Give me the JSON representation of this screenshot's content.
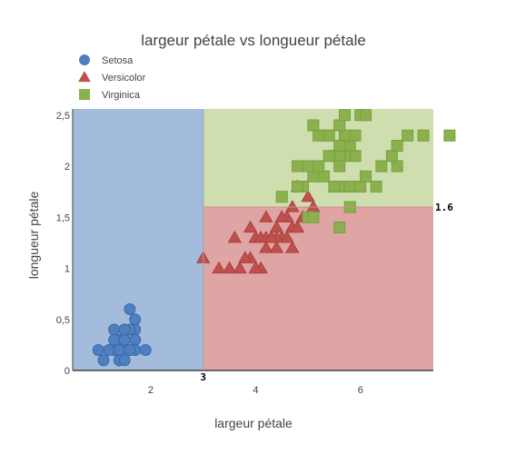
{
  "chart_data": {
    "type": "scatter",
    "title": "largeur pétale vs longueur pétale",
    "xlabel": "largeur pétale",
    "ylabel": "longueur pétale",
    "xlim": [
      0.51,
      7.39
    ],
    "ylim": [
      0,
      2.56
    ],
    "x_ticks": [
      {
        "value": 2,
        "label": "2"
      },
      {
        "value": 4,
        "label": "4"
      },
      {
        "value": 6,
        "label": "6"
      }
    ],
    "y_ticks": [
      {
        "value": 0,
        "label": "0"
      },
      {
        "value": 0.5,
        "label": "0,5"
      },
      {
        "value": 1,
        "label": "1"
      },
      {
        "value": 1.5,
        "label": "1,5"
      },
      {
        "value": 2,
        "label": "2"
      },
      {
        "value": 2.5,
        "label": "2,5"
      }
    ],
    "grid": false,
    "legend_position": "top-left",
    "regions": [
      {
        "x": [
          0.51,
          3
        ],
        "y": [
          0,
          2.56
        ],
        "color": "#a3bcdb"
      },
      {
        "x": [
          3,
          7.39
        ],
        "y": [
          0,
          1.6
        ],
        "color": "#dfa4a4"
      },
      {
        "x": [
          3,
          7.39
        ],
        "y": [
          1.6,
          2.56
        ],
        "color": "#cfdeae"
      }
    ],
    "thresholds": [
      {
        "axis": "x",
        "value": 3,
        "label": "3"
      },
      {
        "axis": "y",
        "value": 1.6,
        "label": "1.6"
      }
    ],
    "series": [
      {
        "name": "Setosa",
        "marker": "circle",
        "color": "#4f7fc0",
        "points": [
          [
            1.3,
            0.2
          ],
          [
            1.4,
            0.2
          ],
          [
            1.5,
            0.2
          ],
          [
            1.4,
            0.3
          ],
          [
            1.7,
            0.4
          ],
          [
            1.4,
            0.1
          ],
          [
            1.5,
            0.2
          ],
          [
            1.5,
            0.3
          ],
          [
            1.4,
            0.1
          ],
          [
            1.5,
            0.1
          ],
          [
            1.6,
            0.2
          ],
          [
            1.4,
            0.2
          ],
          [
            1.1,
            0.1
          ],
          [
            1.2,
            0.2
          ],
          [
            1.5,
            0.4
          ],
          [
            1.3,
            0.4
          ],
          [
            1.7,
            0.3
          ],
          [
            1.5,
            0.3
          ],
          [
            1.7,
            0.2
          ],
          [
            1.5,
            0.4
          ],
          [
            1.0,
            0.2
          ],
          [
            1.7,
            0.5
          ],
          [
            1.9,
            0.2
          ],
          [
            1.6,
            0.2
          ],
          [
            1.6,
            0.4
          ],
          [
            1.4,
            0.2
          ],
          [
            1.6,
            0.2
          ],
          [
            1.5,
            0.4
          ],
          [
            1.3,
            0.3
          ],
          [
            1.6,
            0.6
          ]
        ]
      },
      {
        "name": "Versicolor",
        "marker": "triangle",
        "color": "#c0504d",
        "points": [
          [
            4.7,
            1.4
          ],
          [
            4.5,
            1.5
          ],
          [
            4.9,
            1.5
          ],
          [
            4.0,
            1.3
          ],
          [
            4.6,
            1.5
          ],
          [
            4.5,
            1.3
          ],
          [
            4.7,
            1.6
          ],
          [
            3.3,
            1.0
          ],
          [
            4.6,
            1.3
          ],
          [
            3.9,
            1.4
          ],
          [
            3.5,
            1.0
          ],
          [
            4.2,
            1.5
          ],
          [
            4.0,
            1.0
          ],
          [
            4.7,
            1.4
          ],
          [
            3.6,
            1.3
          ],
          [
            4.4,
            1.4
          ],
          [
            4.1,
            1.0
          ],
          [
            4.5,
            1.5
          ],
          [
            3.9,
            1.1
          ],
          [
            4.8,
            1.8
          ],
          [
            4.0,
            1.3
          ],
          [
            4.9,
            1.5
          ],
          [
            4.7,
            1.2
          ],
          [
            4.3,
            1.3
          ],
          [
            4.8,
            1.4
          ],
          [
            5.0,
            1.7
          ],
          [
            3.8,
            1.1
          ],
          [
            3.7,
            1.0
          ],
          [
            5.1,
            1.6
          ],
          [
            4.4,
            1.2
          ],
          [
            4.1,
            1.3
          ],
          [
            3.0,
            1.1
          ],
          [
            4.2,
            1.3
          ],
          [
            4.9,
            1.5
          ],
          [
            4.0,
            1.0
          ],
          [
            4.2,
            1.2
          ],
          [
            4.4,
            1.3
          ],
          [
            4.3,
            1.3
          ]
        ]
      },
      {
        "name": "Virginica",
        "marker": "square",
        "color": "#8bb14e",
        "points": [
          [
            6.0,
            2.5
          ],
          [
            5.1,
            1.9
          ],
          [
            5.9,
            2.1
          ],
          [
            5.6,
            1.8
          ],
          [
            5.8,
            2.2
          ],
          [
            6.6,
            2.1
          ],
          [
            4.5,
            1.7
          ],
          [
            6.3,
            1.8
          ],
          [
            5.8,
            1.8
          ],
          [
            6.1,
            2.5
          ],
          [
            5.1,
            2.0
          ],
          [
            5.3,
            1.9
          ],
          [
            5.5,
            2.1
          ],
          [
            5.0,
            2.0
          ],
          [
            5.1,
            2.4
          ],
          [
            5.3,
            2.3
          ],
          [
            6.7,
            2.2
          ],
          [
            6.9,
            2.3
          ],
          [
            5.0,
            1.5
          ],
          [
            5.7,
            2.3
          ],
          [
            4.9,
            2.0
          ],
          [
            6.7,
            2.0
          ],
          [
            4.9,
            1.8
          ],
          [
            5.7,
            2.1
          ],
          [
            6.0,
            1.8
          ],
          [
            4.8,
            1.8
          ],
          [
            4.9,
            1.8
          ],
          [
            5.6,
            2.1
          ],
          [
            6.4,
            2.0
          ],
          [
            7.2,
            2.3
          ],
          [
            6.1,
            1.9
          ],
          [
            5.1,
            1.5
          ],
          [
            5.6,
            1.4
          ],
          [
            7.7,
            2.3
          ],
          [
            5.5,
            1.8
          ],
          [
            4.8,
            1.8
          ],
          [
            5.4,
            2.1
          ],
          [
            5.6,
            2.4
          ],
          [
            5.9,
            2.3
          ],
          [
            5.7,
            2.5
          ],
          [
            5.2,
            2.3
          ],
          [
            5.4,
            2.3
          ],
          [
            5.8,
            1.6
          ],
          [
            5.0,
            2.0
          ],
          [
            5.2,
            2.0
          ],
          [
            4.8,
            2.0
          ],
          [
            5.6,
            2.2
          ],
          [
            5.6,
            2.0
          ]
        ]
      }
    ]
  }
}
